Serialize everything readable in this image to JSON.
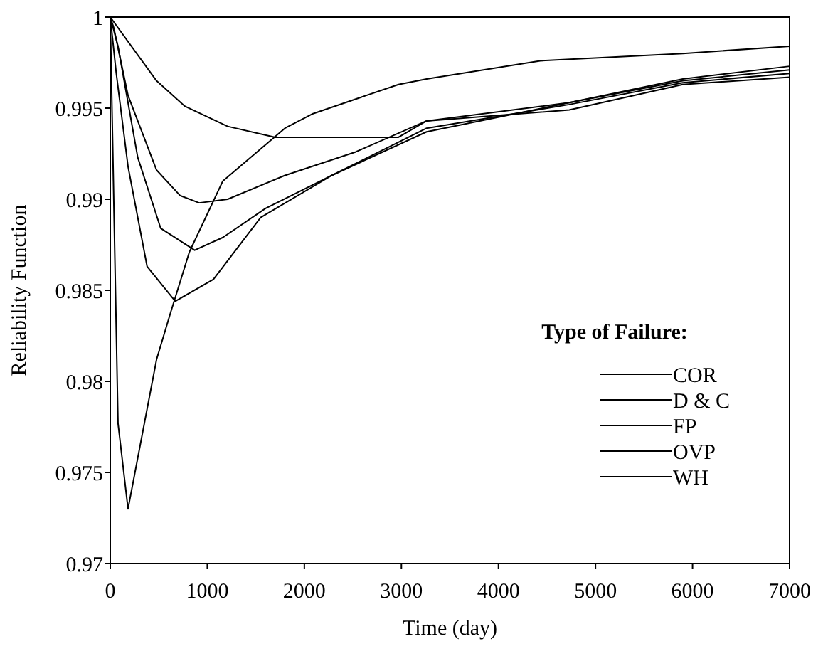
{
  "chart_data": {
    "type": "line",
    "xlabel": "Time (day)",
    "ylabel": "Reliability Function",
    "legend_title": "Type of Failure:",
    "legend": "right",
    "grid": false,
    "marker": "none",
    "line_style": "solid",
    "xlim": [
      0,
      7000
    ],
    "ylim": [
      0.97,
      1
    ],
    "xticks": [
      0,
      1000,
      2000,
      3000,
      4000,
      5000,
      6000,
      7000
    ],
    "yticks": [
      0.97,
      0.975,
      0.98,
      0.985,
      0.99,
      0.995,
      1
    ],
    "series": [
      {
        "name": "COR",
        "color": "#000000",
        "x": [
          0,
          477,
          770,
          1210,
          1700,
          2090,
          2970,
          3260,
          4730,
          5900,
          7000
        ],
        "values": [
          1,
          0.9965,
          0.9951,
          0.994,
          0.9934,
          0.9934,
          0.9934,
          0.9943,
          0.9949,
          0.9963,
          0.9967
        ]
      },
      {
        "name": "D & C",
        "color": "#000000",
        "x": [
          0,
          37,
          183,
          477,
          720,
          916,
          1210,
          1796,
          2530,
          3260,
          4730,
          5900,
          7000
        ],
        "values": [
          1,
          0.9994,
          0.9957,
          0.9916,
          0.9902,
          0.9898,
          0.99,
          0.9913,
          0.9926,
          0.9943,
          0.9953,
          0.9966,
          0.9973
        ]
      },
      {
        "name": "FP",
        "color": "#000000",
        "x": [
          0,
          80,
          283,
          520,
          870,
          1160,
          1600,
          2280,
          3260,
          4730,
          5900,
          7000
        ],
        "values": [
          1,
          0.9984,
          0.9923,
          0.9884,
          0.9872,
          0.9879,
          0.9895,
          0.9913,
          0.9937,
          0.9953,
          0.9965,
          0.9971
        ]
      },
      {
        "name": "OVP",
        "color": "#000000",
        "x": [
          0,
          60,
          183,
          380,
          670,
          1063,
          1550,
          2280,
          3260,
          4730,
          5900,
          7000
        ],
        "values": [
          1,
          0.997,
          0.9918,
          0.9863,
          0.9844,
          0.9856,
          0.989,
          0.9913,
          0.9939,
          0.9952,
          0.9964,
          0.9969
        ]
      },
      {
        "name": "WH",
        "color": "#000000",
        "x": [
          0,
          80,
          183,
          477,
          623,
          815,
          1160,
          1800,
          2090,
          2970,
          3260,
          4430,
          5900,
          7000
        ],
        "values": [
          1,
          0.9777,
          0.973,
          0.9812,
          0.9838,
          0.9871,
          0.991,
          0.9939,
          0.9947,
          0.9963,
          0.9966,
          0.9976,
          0.998,
          0.9984
        ]
      }
    ]
  }
}
